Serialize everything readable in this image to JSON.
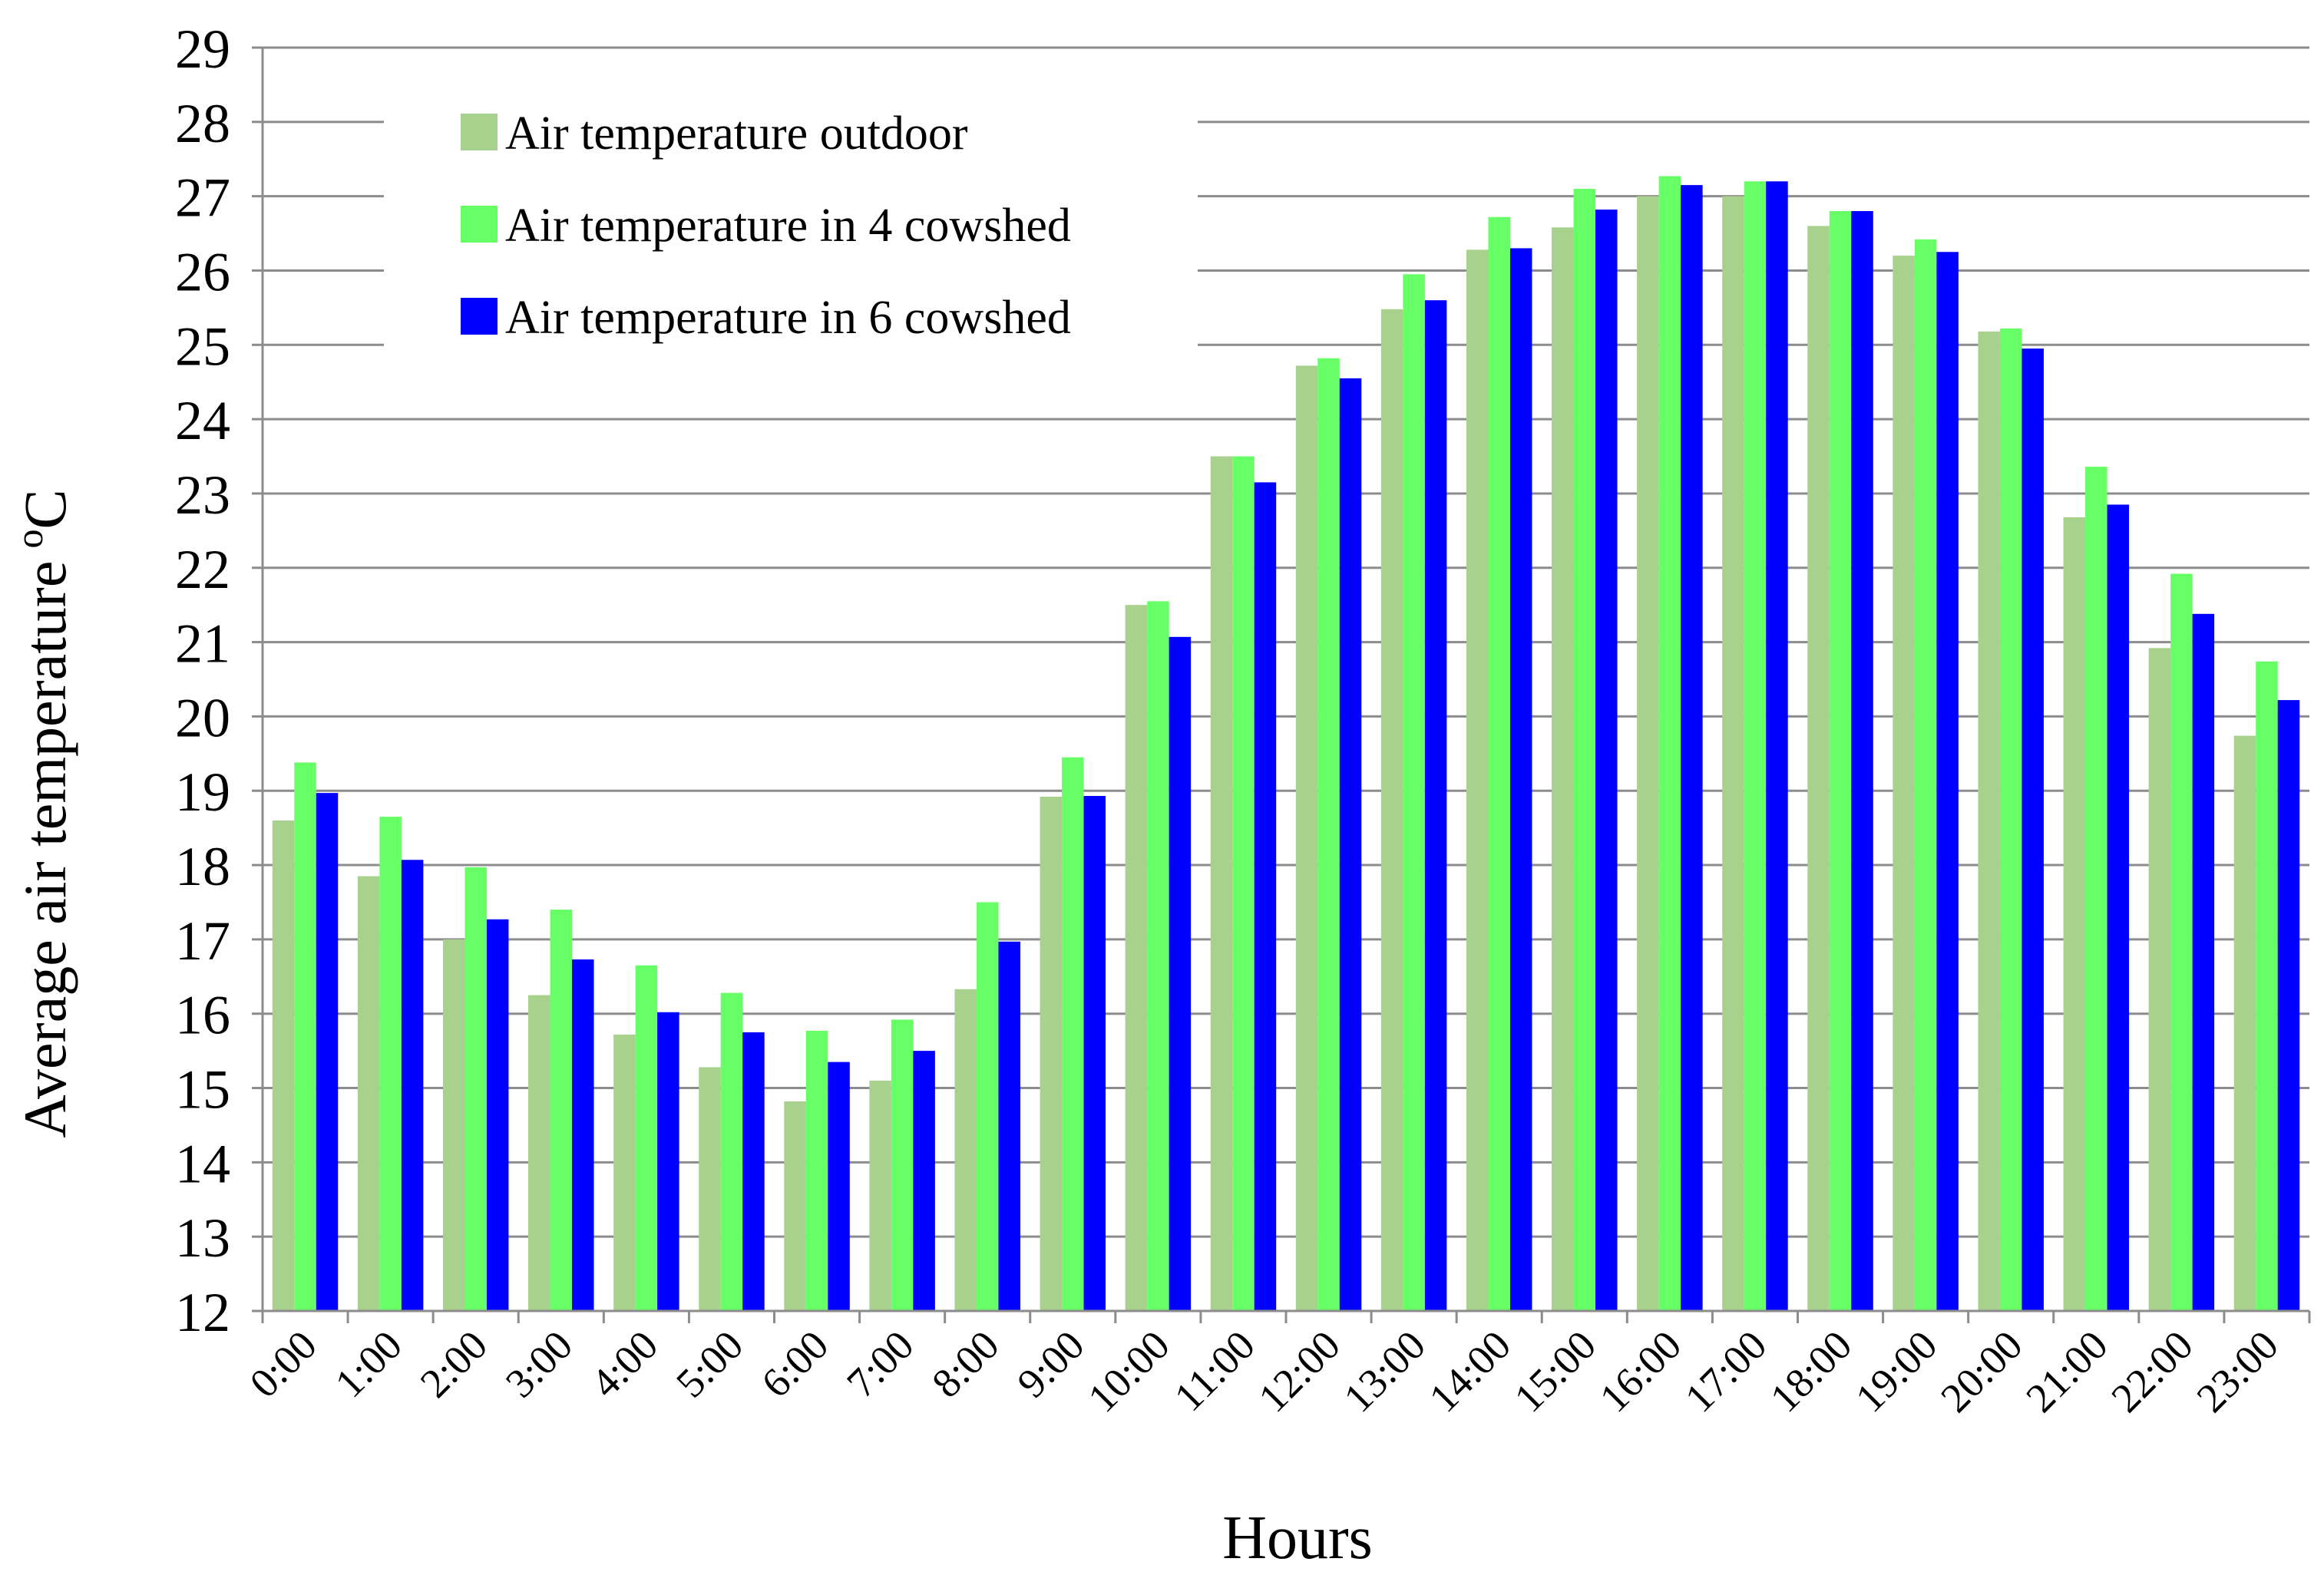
{
  "chart_data": {
    "type": "bar",
    "title": "",
    "xlabel": "Hours",
    "ylabel": "Average air temperature",
    "ylabel_unit_superscript": "o",
    "ylabel_unit": "C",
    "ylim": [
      12,
      29
    ],
    "ytick_step": 1,
    "grid": true,
    "legend_position": "top-left",
    "categories": [
      "0:00",
      "1:00",
      "2:00",
      "3:00",
      "4:00",
      "5:00",
      "6:00",
      "7:00",
      "8:00",
      "9:00",
      "10:00",
      "11:00",
      "12:00",
      "13:00",
      "14:00",
      "15:00",
      "16:00",
      "17:00",
      "18:00",
      "19:00",
      "20:00",
      "21:00",
      "22:00",
      "23:00"
    ],
    "series": [
      {
        "name": "Air temperature outdoor",
        "color": "#a9d18e",
        "values": [
          18.6,
          17.85,
          17.0,
          16.25,
          15.72,
          15.28,
          14.82,
          15.1,
          16.33,
          18.92,
          21.5,
          23.5,
          24.72,
          25.48,
          26.28,
          26.58,
          27.0,
          27.0,
          26.6,
          26.2,
          25.18,
          22.68,
          20.92,
          19.74
        ]
      },
      {
        "name": "Air temperature in 4 cowshed",
        "color": "#66ff66",
        "values": [
          19.38,
          18.65,
          17.97,
          17.4,
          16.65,
          16.28,
          15.77,
          15.92,
          17.5,
          19.45,
          21.55,
          23.5,
          24.82,
          25.95,
          26.72,
          27.1,
          27.27,
          27.2,
          26.8,
          26.42,
          25.22,
          23.36,
          21.92,
          20.74
        ]
      },
      {
        "name": "Air temperature in 6 cowshed",
        "color": "#0000ff",
        "values": [
          18.97,
          18.07,
          17.27,
          16.73,
          16.02,
          15.75,
          15.35,
          15.5,
          16.97,
          18.93,
          21.07,
          23.15,
          24.55,
          25.6,
          26.3,
          26.82,
          27.15,
          27.2,
          26.8,
          26.25,
          24.95,
          22.85,
          21.38,
          20.22
        ]
      }
    ]
  }
}
